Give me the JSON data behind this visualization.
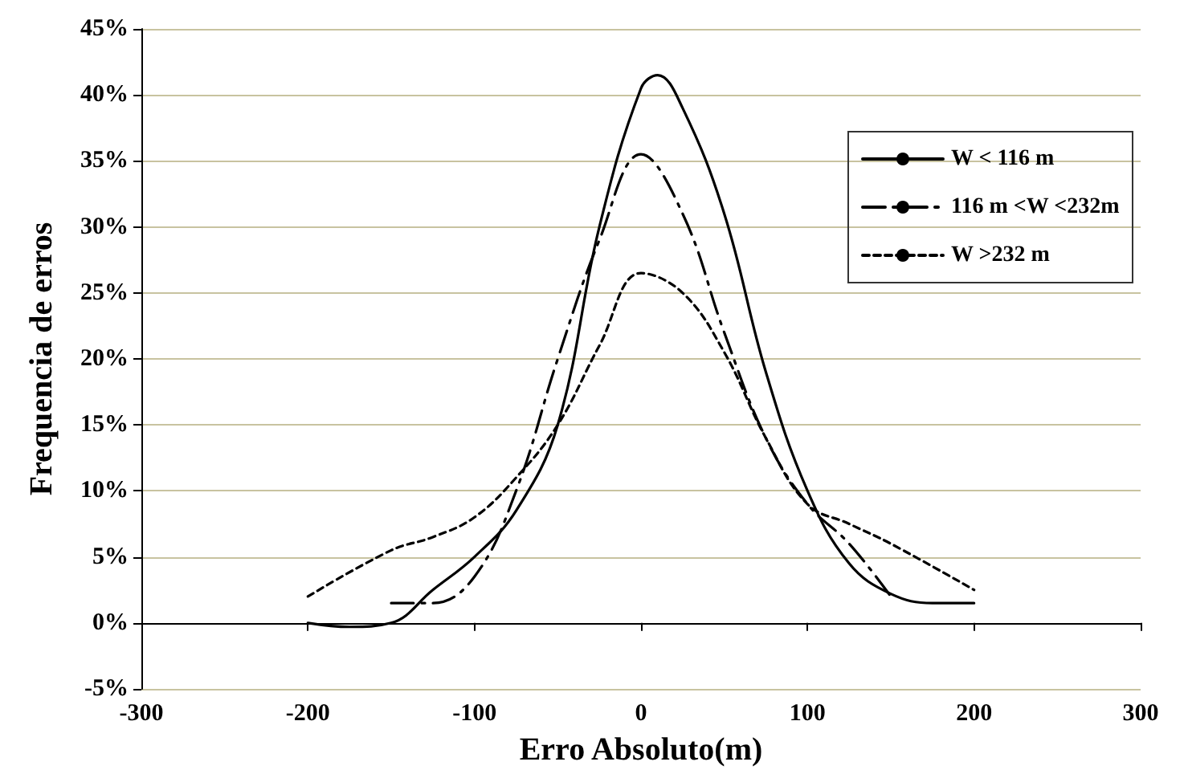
{
  "chart_data": {
    "type": "line",
    "xlabel": "Erro Absoluto(m)",
    "ylabel": "Frequencia de erros",
    "xlim": [
      -300,
      300
    ],
    "xticks": [
      -300,
      -200,
      -100,
      0,
      100,
      200,
      300
    ],
    "ylim": [
      -5,
      45
    ],
    "yticks": [
      {
        "value": -5,
        "label": "-5%"
      },
      {
        "value": 0,
        "label": "0%"
      },
      {
        "value": 5,
        "label": "5%"
      },
      {
        "value": 10,
        "label": "10%"
      },
      {
        "value": 15,
        "label": "15%"
      },
      {
        "value": 20,
        "label": "20%"
      },
      {
        "value": 25,
        "label": "25%"
      },
      {
        "value": 30,
        "label": "30%"
      },
      {
        "value": 35,
        "label": "35%"
      },
      {
        "value": 40,
        "label": "40%"
      },
      {
        "value": 45,
        "label": "45%"
      }
    ],
    "grid": "y",
    "legend": "top right",
    "marker": "none",
    "series": [
      {
        "name": "W < 116 m",
        "color": "#000000",
        "line_style": "solid",
        "x": [
          -200,
          -175,
          -150,
          -125,
          -100,
          -75,
          -50,
          -25,
          0,
          10,
          25,
          50,
          75,
          100,
          125,
          150,
          175,
          200
        ],
        "values": [
          0,
          -0.3,
          0,
          2.5,
          5,
          8.5,
          15,
          30,
          40.5,
          41.5,
          39,
          31,
          19,
          10,
          4.5,
          2.2,
          1.5,
          1.5
        ]
      },
      {
        "name": "116 m <W <232m",
        "color": "#000000",
        "line_style": "dashdot",
        "x": [
          -150,
          -125,
          -100,
          -75,
          -50,
          -25,
          0,
          25,
          50,
          75,
          100,
          125,
          150
        ],
        "values": [
          1.5,
          1.5,
          3.5,
          10,
          20,
          29,
          35.5,
          31,
          22,
          14,
          9,
          6,
          2
        ]
      },
      {
        "name": "W >232 m",
        "color": "#000000",
        "line_style": "dashed",
        "x": [
          -200,
          -150,
          -125,
          -100,
          -75,
          -50,
          -25,
          0,
          25,
          50,
          75,
          100,
          125,
          150,
          200
        ],
        "values": [
          2,
          5.5,
          6.5,
          8,
          11,
          15,
          21,
          26.5,
          25,
          20.5,
          14,
          9,
          7.5,
          6,
          2.5
        ]
      }
    ]
  }
}
